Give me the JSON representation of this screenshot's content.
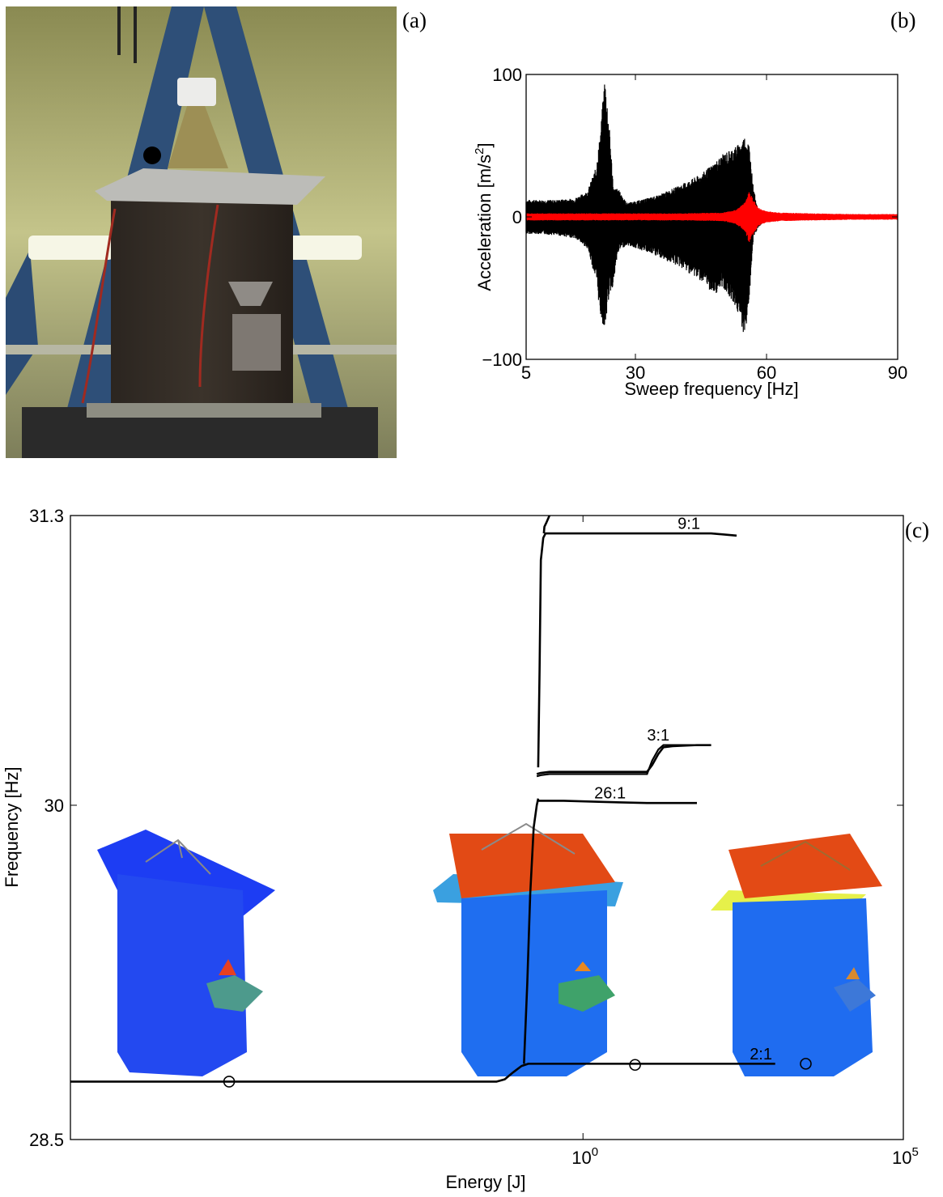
{
  "panel_labels": {
    "a": "(a)",
    "b": "(b)",
    "c": "(c)"
  },
  "photo": {
    "description_icon": "spacecraft-photo"
  },
  "chart_data": [
    {
      "type": "line",
      "panel": "(b)",
      "title": "",
      "xlabel": "Sweep frequency [Hz]",
      "ylabel_main": "Acceleration [m/s",
      "ylabel_sup": "2",
      "ylabel_end": "]",
      "xlim": [
        5,
        90
      ],
      "ylim": [
        -100,
        100
      ],
      "xticks": [
        5,
        30,
        60,
        90
      ],
      "xtick_labels": [
        "5",
        "30",
        "60",
        "90"
      ],
      "yticks": [
        -100,
        0,
        100
      ],
      "ytick_labels": [
        "−100",
        "0",
        "100"
      ],
      "grid": false,
      "series": [
        {
          "color": "#000000",
          "envelope_x": [
            5,
            8,
            12,
            16,
            19,
            21,
            22,
            23,
            24,
            25,
            26,
            27,
            28,
            30,
            35,
            40,
            45,
            48,
            50,
            52,
            54,
            55,
            56,
            57,
            58,
            59,
            60,
            62,
            64,
            68,
            75,
            82,
            90
          ],
          "envelope_pos": [
            12,
            12,
            12,
            13,
            18,
            35,
            60,
            100,
            65,
            20,
            20,
            15,
            10,
            11,
            15,
            22,
            30,
            38,
            44,
            48,
            52,
            57,
            52,
            20,
            6,
            4,
            3,
            2.5,
            2,
            2,
            2,
            1.5,
            1.5
          ],
          "envelope_neg": [
            -12,
            -12,
            -13,
            -15,
            -22,
            -45,
            -70,
            -80,
            -55,
            -48,
            -25,
            -22,
            -20,
            -22,
            -28,
            -35,
            -45,
            -55,
            -50,
            -58,
            -72,
            -86,
            -60,
            -15,
            -8,
            -5,
            -3,
            -2.5,
            -2,
            -2,
            -2,
            -1.5,
            -1.5
          ]
        },
        {
          "color": "#ff0000",
          "envelope_x": [
            5,
            20,
            40,
            50,
            53,
            55,
            56,
            57,
            58,
            59,
            60,
            63,
            70,
            80,
            90
          ],
          "envelope_pos": [
            2.5,
            2.5,
            2.5,
            3,
            5,
            10,
            18,
            12,
            7,
            5,
            4,
            3,
            2.5,
            2,
            2
          ],
          "envelope_neg": [
            -2.5,
            -2.5,
            -2.5,
            -3,
            -5,
            -10,
            -18,
            -12,
            -7,
            -5,
            -4,
            -3,
            -2.5,
            -2,
            -2
          ]
        }
      ]
    },
    {
      "type": "line",
      "panel": "(c)",
      "title": "",
      "xlabel": "Energy [J]",
      "ylabel": "Frequency [Hz]",
      "xscale": "log",
      "xlim": [
        1e-08,
        100000.0
      ],
      "ylim": [
        28.5,
        31.3
      ],
      "xticks": [
        1,
        100000
      ],
      "xtick_base": [
        "10",
        "10"
      ],
      "xtick_exp": [
        "0",
        "5"
      ],
      "yticks": [
        28.5,
        30,
        31.3
      ],
      "ytick_labels": [
        "28.5",
        "30",
        "31.3"
      ],
      "grid": false,
      "annotations": [
        "9:1",
        "3:1",
        "26:1",
        "2:1"
      ],
      "series": [
        {
          "color": "#000000",
          "x": [
            1e-08,
            0.01,
            0.045,
            0.06,
            0.08,
            0.11,
            0.14,
            0.2,
            0.3,
            0.5,
            0.7,
            1,
            1.5,
            2.5,
            4,
            8,
            20,
            100,
            1000
          ],
          "y": [
            28.76,
            28.76,
            28.76,
            28.77,
            28.8,
            28.83,
            28.84,
            28.84,
            28.84,
            28.84,
            28.84,
            28.84,
            28.84,
            28.84,
            28.84,
            28.84,
            28.84,
            28.84,
            28.84
          ]
        },
        {
          "color": "#000000",
          "x": [
            0.12,
            0.135,
            0.15,
            0.17,
            0.19,
            0.2
          ],
          "y": [
            28.84,
            29.2,
            29.6,
            29.9,
            30.0,
            30.03
          ]
        },
        {
          "color": "#000000",
          "x": [
            0.2,
            0.5,
            2,
            10,
            40,
            60
          ],
          "y": [
            30.02,
            30.02,
            30.015,
            30.01,
            30.01,
            30.01
          ]
        },
        {
          "color": "#000000",
          "x": [
            0.19,
            0.22,
            0.3,
            0.6,
            1.5,
            5,
            10,
            12,
            15,
            18,
            25,
            60,
            100
          ],
          "y": [
            30.14,
            30.145,
            30.15,
            30.15,
            30.15,
            30.15,
            30.15,
            30.18,
            30.23,
            30.26,
            30.265,
            30.27,
            30.27
          ],
          "y_alt": [
            30.13,
            30.135,
            30.14,
            30.14,
            30.14,
            30.14,
            30.14,
            30.2,
            30.25,
            30.27,
            30.27,
            30.27,
            30.27
          ]
        },
        {
          "color": "#000000",
          "x": [
            0.2,
            0.21,
            0.22,
            0.24,
            0.26,
            0.3,
            0.5,
            2,
            10,
            100,
            250
          ],
          "y": [
            30.17,
            30.6,
            31.1,
            31.2,
            31.22,
            31.22,
            31.22,
            31.22,
            31.22,
            31.22,
            31.21
          ]
        },
        {
          "color": "#000000",
          "x": [
            0.245,
            0.25,
            0.27,
            0.3
          ],
          "y": [
            31.22,
            31.25,
            31.27,
            31.3
          ]
        }
      ],
      "markers": [
        {
          "x": 3e-06,
          "y": 28.76
        },
        {
          "x": 6.5,
          "y": 28.835
        },
        {
          "x": 3000,
          "y": 28.84
        }
      ]
    }
  ]
}
